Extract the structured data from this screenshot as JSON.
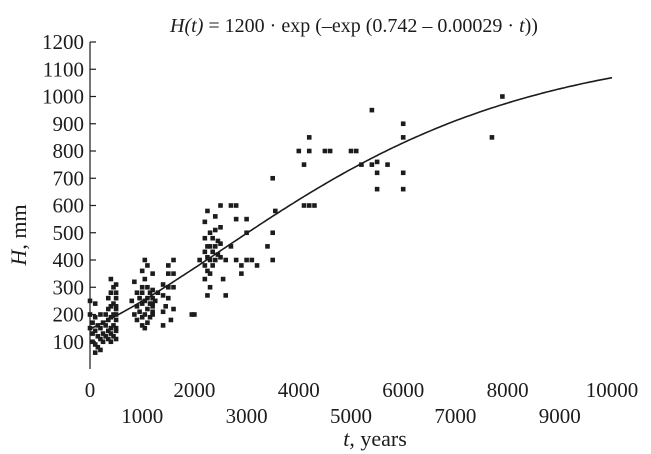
{
  "chart_data": {
    "type": "scatter",
    "title": "H(t) = 1200 · exp (–exp (0.742 – 0.00029 · t))",
    "title_parts": {
      "fn": "H(t)",
      "mid": " = 1200 · exp (–exp (0.742 – 0.00029 · ",
      "var": "t",
      "end": "))"
    },
    "xlabel": "t, years",
    "xlabel_parts": {
      "var": "t",
      "rest": ", years"
    },
    "ylabel": "H, mm",
    "ylabel_parts": {
      "var": "H",
      "rest": ", mm"
    },
    "xlim": [
      0,
      10000
    ],
    "ylim": [
      0,
      1200
    ],
    "x_ticks_upper": [
      "0",
      "2000",
      "4000",
      "6000",
      "8000",
      "10000"
    ],
    "x_ticks_lower": [
      "1000",
      "3000",
      "5000",
      "7000",
      "9000"
    ],
    "y_ticks": [
      "100",
      "200",
      "300",
      "400",
      "500",
      "600",
      "700",
      "800",
      "900",
      "1000",
      "1100",
      "1200"
    ],
    "grid": false,
    "fit_curve": {
      "A": 1200,
      "b": 0.742,
      "c": 0.00029,
      "x_range": [
        0,
        10000
      ]
    },
    "series": [
      {
        "marker": "square",
        "points": [
          [
            0,
            150
          ],
          [
            0,
            200
          ],
          [
            0,
            250
          ],
          [
            50,
            100
          ],
          [
            50,
            130
          ],
          [
            50,
            170
          ],
          [
            100,
            60
          ],
          [
            100,
            90
          ],
          [
            100,
            140
          ],
          [
            100,
            190
          ],
          [
            100,
            240
          ],
          [
            150,
            80
          ],
          [
            150,
            120
          ],
          [
            150,
            160
          ],
          [
            200,
            70
          ],
          [
            200,
            110
          ],
          [
            200,
            150
          ],
          [
            200,
            200
          ],
          [
            250,
            100
          ],
          [
            250,
            130
          ],
          [
            250,
            170
          ],
          [
            300,
            120
          ],
          [
            300,
            160
          ],
          [
            300,
            200
          ],
          [
            350,
            110
          ],
          [
            350,
            140
          ],
          [
            350,
            180
          ],
          [
            350,
            220
          ],
          [
            350,
            260
          ],
          [
            400,
            100
          ],
          [
            400,
            130
          ],
          [
            400,
            150
          ],
          [
            400,
            190
          ],
          [
            400,
            230
          ],
          [
            400,
            280
          ],
          [
            400,
            330
          ],
          [
            450,
            120
          ],
          [
            450,
            160
          ],
          [
            450,
            200
          ],
          [
            450,
            240
          ],
          [
            450,
            300
          ],
          [
            500,
            110
          ],
          [
            500,
            140
          ],
          [
            500,
            180
          ],
          [
            500,
            220
          ],
          [
            500,
            260
          ],
          [
            500,
            310
          ],
          [
            500,
            150
          ],
          [
            500,
            200
          ],
          [
            500,
            230
          ],
          [
            500,
            280
          ],
          [
            800,
            250
          ],
          [
            850,
            200
          ],
          [
            850,
            320
          ],
          [
            900,
            180
          ],
          [
            900,
            230
          ],
          [
            900,
            280
          ],
          [
            950,
            210
          ],
          [
            950,
            260
          ],
          [
            1000,
            160
          ],
          [
            1000,
            190
          ],
          [
            1000,
            240
          ],
          [
            1000,
            280
          ],
          [
            1000,
            300
          ],
          [
            1000,
            360
          ],
          [
            1050,
            150
          ],
          [
            1050,
            200
          ],
          [
            1050,
            250
          ],
          [
            1050,
            330
          ],
          [
            1050,
            400
          ],
          [
            1100,
            170
          ],
          [
            1100,
            220
          ],
          [
            1100,
            260
          ],
          [
            1100,
            300
          ],
          [
            1100,
            380
          ],
          [
            1150,
            190
          ],
          [
            1150,
            240
          ],
          [
            1150,
            280
          ],
          [
            1200,
            200
          ],
          [
            1200,
            230
          ],
          [
            1200,
            260
          ],
          [
            1200,
            290
          ],
          [
            1200,
            350
          ],
          [
            1200,
            210
          ],
          [
            1200,
            240
          ],
          [
            1250,
            250
          ],
          [
            1300,
            280
          ],
          [
            1400,
            160
          ],
          [
            1400,
            210
          ],
          [
            1400,
            270
          ],
          [
            1400,
            310
          ],
          [
            1450,
            230
          ],
          [
            1500,
            260
          ],
          [
            1500,
            300
          ],
          [
            1500,
            350
          ],
          [
            1500,
            380
          ],
          [
            1550,
            180
          ],
          [
            1600,
            220
          ],
          [
            1600,
            300
          ],
          [
            1600,
            350
          ],
          [
            1600,
            400
          ],
          [
            1950,
            200
          ],
          [
            2000,
            200
          ],
          [
            2100,
            400
          ],
          [
            2200,
            330
          ],
          [
            2200,
            380
          ],
          [
            2200,
            430
          ],
          [
            2200,
            480
          ],
          [
            2200,
            540
          ],
          [
            2250,
            270
          ],
          [
            2250,
            360
          ],
          [
            2250,
            410
          ],
          [
            2250,
            450
          ],
          [
            2250,
            580
          ],
          [
            2300,
            300
          ],
          [
            2300,
            350
          ],
          [
            2300,
            400
          ],
          [
            2300,
            450
          ],
          [
            2300,
            500
          ],
          [
            2350,
            380
          ],
          [
            2350,
            430
          ],
          [
            2350,
            480
          ],
          [
            2400,
            400
          ],
          [
            2400,
            450
          ],
          [
            2400,
            510
          ],
          [
            2400,
            560
          ],
          [
            2450,
            420
          ],
          [
            2450,
            470
          ],
          [
            2500,
            410
          ],
          [
            2500,
            460
          ],
          [
            2500,
            520
          ],
          [
            2500,
            600
          ],
          [
            2550,
            330
          ],
          [
            2600,
            270
          ],
          [
            2600,
            400
          ],
          [
            2700,
            600
          ],
          [
            2700,
            450
          ],
          [
            2800,
            400
          ],
          [
            2800,
            550
          ],
          [
            2800,
            600
          ],
          [
            2900,
            380
          ],
          [
            2900,
            350
          ],
          [
            3000,
            400
          ],
          [
            3000,
            500
          ],
          [
            3000,
            550
          ],
          [
            3100,
            400
          ],
          [
            3200,
            380
          ],
          [
            3400,
            450
          ],
          [
            3500,
            400
          ],
          [
            3500,
            500
          ],
          [
            3550,
            580
          ],
          [
            3500,
            700
          ],
          [
            4000,
            800
          ],
          [
            4100,
            600
          ],
          [
            4100,
            750
          ],
          [
            4200,
            600
          ],
          [
            4200,
            800
          ],
          [
            4200,
            850
          ],
          [
            4300,
            600
          ],
          [
            4500,
            800
          ],
          [
            4600,
            800
          ],
          [
            5000,
            800
          ],
          [
            5100,
            800
          ],
          [
            5200,
            750
          ],
          [
            5400,
            750
          ],
          [
            5400,
            950
          ],
          [
            5500,
            660
          ],
          [
            5500,
            720
          ],
          [
            5500,
            760
          ],
          [
            5700,
            750
          ],
          [
            6000,
            660
          ],
          [
            6000,
            720
          ],
          [
            6000,
            850
          ],
          [
            6000,
            900
          ],
          [
            7700,
            850
          ],
          [
            7900,
            1000
          ]
        ]
      }
    ]
  }
}
